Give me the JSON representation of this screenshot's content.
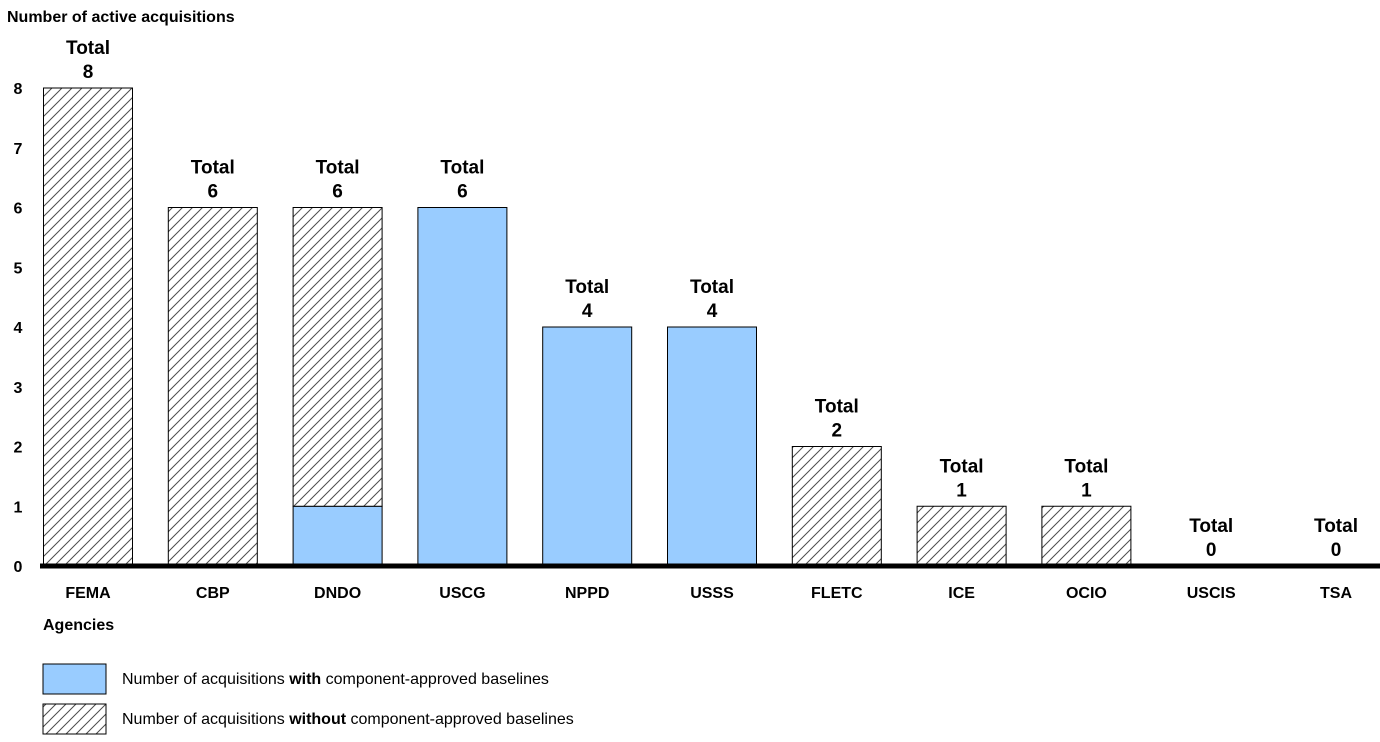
{
  "chart_data": {
    "type": "bar",
    "stacked": true,
    "ylabel": "Number of active acquisitions",
    "xlabel": "Agencies",
    "ylim": [
      0,
      8
    ],
    "yticks": [
      0,
      1,
      2,
      3,
      4,
      5,
      6,
      7,
      8
    ],
    "grid": false,
    "total_label": "Total",
    "categories": [
      "FEMA",
      "CBP",
      "DNDO",
      "USCG",
      "NPPD",
      "USSS",
      "FLETC",
      "ICE",
      "OCIO",
      "USCIS",
      "TSA"
    ],
    "series": [
      {
        "key": "with",
        "name_prefix": "Number of acquisitions ",
        "name_bold": "with",
        "name_suffix": " component-approved baselines",
        "values": [
          0,
          0,
          1,
          6,
          4,
          4,
          0,
          0,
          0,
          0,
          0
        ],
        "color": "#99ccff",
        "pattern": "solid"
      },
      {
        "key": "without",
        "name_prefix": "Number of acquisitions ",
        "name_bold": "without",
        "name_suffix": " component-approved baselines",
        "values": [
          8,
          6,
          5,
          0,
          0,
          0,
          2,
          1,
          1,
          0,
          0
        ],
        "color": "#4d4d4d",
        "pattern": "hatch"
      }
    ],
    "totals": [
      8,
      6,
      6,
      6,
      4,
      4,
      2,
      1,
      1,
      0,
      0
    ],
    "legend_position": "bottom-left"
  }
}
